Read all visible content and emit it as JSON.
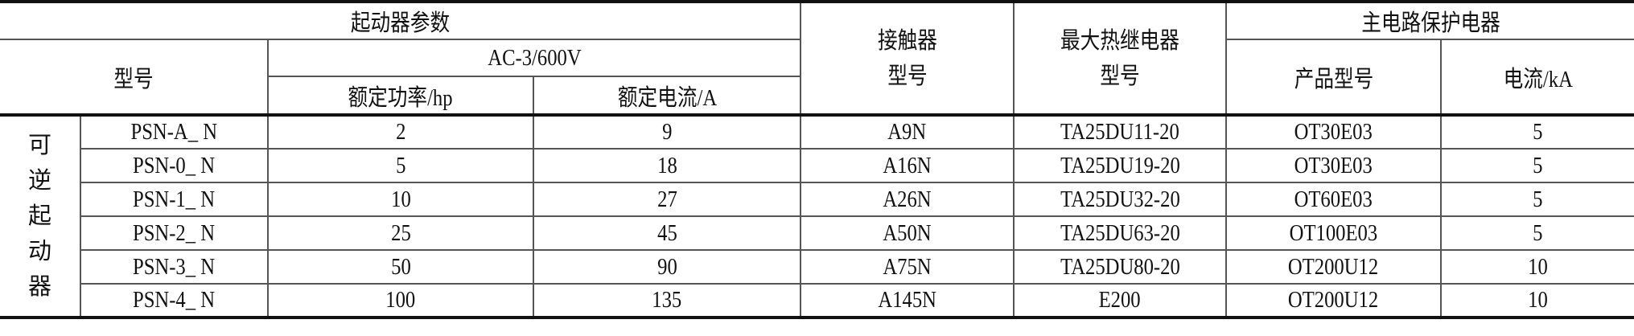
{
  "header": {
    "starter_params": "起动器参数",
    "model": "型号",
    "ac_rating": "AC-3/600V",
    "rated_power": "额定功率/hp",
    "rated_current": "额定电流/A",
    "contactor_model": "接触器型号",
    "relay_model": "最大热继电器型号",
    "main_protection": "主电路保护电器",
    "product_model": "产品型号",
    "current_ka": "电流/kA"
  },
  "group_label": "可逆起动器",
  "rows": [
    {
      "model": "PSN-A_ N",
      "power": "2",
      "current": "9",
      "contactor": "A9N",
      "relay": "TA25DU11-20",
      "product": "OT30E03",
      "ka": "5"
    },
    {
      "model": "PSN-0_ N",
      "power": "5",
      "current": "18",
      "contactor": "A16N",
      "relay": "TA25DU19-20",
      "product": "OT30E03",
      "ka": "5"
    },
    {
      "model": "PSN-1_ N",
      "power": "10",
      "current": "27",
      "contactor": "A26N",
      "relay": "TA25DU32-20",
      "product": "OT60E03",
      "ka": "5"
    },
    {
      "model": "PSN-2_ N",
      "power": "25",
      "current": "45",
      "contactor": "A50N",
      "relay": "TA25DU63-20",
      "product": "OT100E03",
      "ka": "5"
    },
    {
      "model": "PSN-3_ N",
      "power": "50",
      "current": "90",
      "contactor": "A75N",
      "relay": "TA25DU80-20",
      "product": "OT200U12",
      "ka": "10"
    },
    {
      "model": "PSN-4_ N",
      "power": "100",
      "current": "135",
      "contactor": "A145N",
      "relay": "E200",
      "product": "OT200U12",
      "ka": "10"
    }
  ]
}
